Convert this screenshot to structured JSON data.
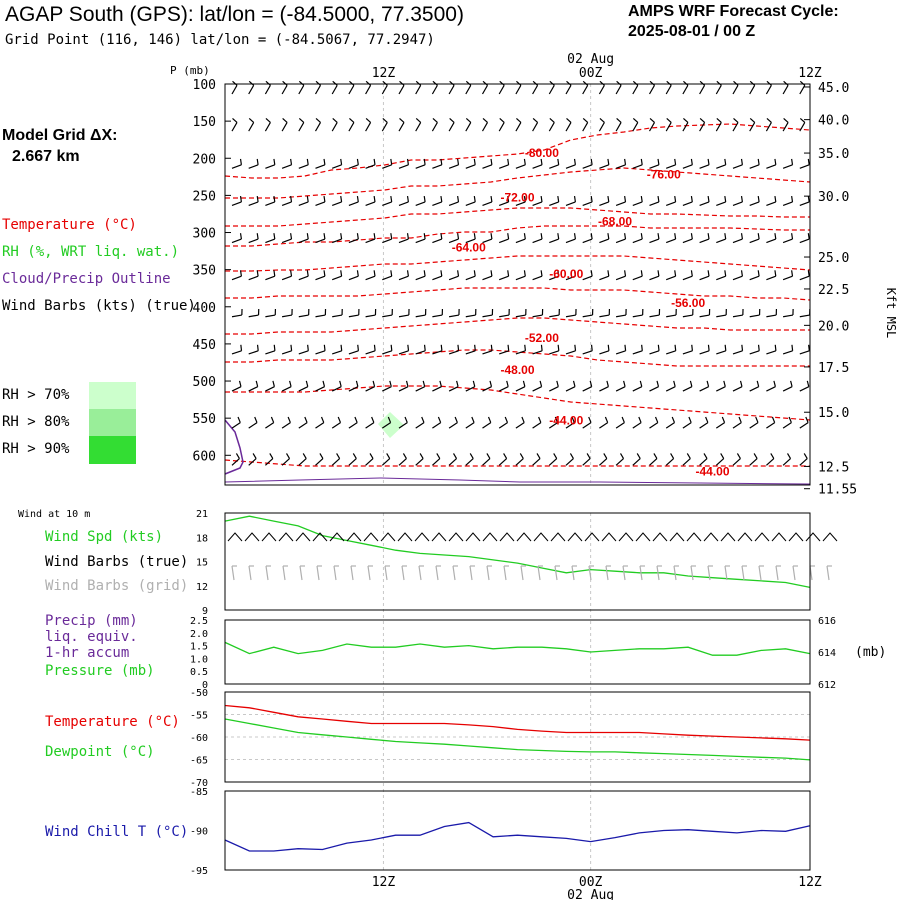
{
  "header": {
    "station_title": "AGAP South (GPS):  lat/lon = (-84.5000, 77.3500)",
    "grid_point": "Grid Point (116, 146) lat/lon = (-84.5067, 77.2947)",
    "cycle_label": "AMPS WRF Forecast Cycle:",
    "cycle_value": "2025-08-01 / 00  Z",
    "model_grid_label": "Model Grid ΔX:",
    "model_grid_value": "2.667 km"
  },
  "legend": {
    "temperature": "Temperature (°C)",
    "rh": "RH (%, WRT liq. wat.)",
    "cloud": "Cloud/Precip Outline",
    "wind_barbs": "Wind Barbs (kts) (true)",
    "rh70": "RH > 70%",
    "rh80": "RH > 80%",
    "rh90": "RH > 90%",
    "wind10m": "Wind at 10 m",
    "wind_spd": "Wind Spd (kts)",
    "wind_barbs_true": "Wind Barbs (true)",
    "wind_barbs_grid": "Wind Barbs (grid)",
    "precip_1": "Precip (mm)",
    "precip_2": "liq. equiv.",
    "precip_3": "1-hr accum",
    "pressure": "Pressure (mb)",
    "temp2": "Temperature (°C)",
    "dewpoint": "Dewpoint (°C)",
    "windchill": "Wind Chill T (°C)"
  },
  "colors": {
    "temperature": "#e60000",
    "green": "#22cc22",
    "purple": "#6a2a99",
    "blue": "#1a1aaa",
    "grid_barb": "#b0b0b0",
    "rh70": "#ccffcc",
    "rh80": "#99ee99",
    "rh90": "#33dd33"
  },
  "chart_data": [
    {
      "type": "line",
      "panel": "upper-air",
      "ylabel": "P (mb)",
      "right_label": "Kft MSL",
      "y_ticks": [
        "100",
        "150",
        "200",
        "250",
        "300",
        "350",
        "400",
        "450",
        "500",
        "550",
        "600"
      ],
      "right_ticks": [
        "45.0",
        "40.0",
        "35.0",
        "30.0",
        "25.0",
        "22.5",
        "20.0",
        "17.5",
        "15.0",
        "12.5",
        "11.55"
      ],
      "right_tick_pressures": [
        104,
        148,
        193,
        251,
        333,
        376,
        425,
        481,
        542,
        615,
        645
      ],
      "time_ticks": [
        "12Z",
        "00Z",
        "12Z"
      ],
      "date_label": "02 Aug",
      "temperature_labels": [
        {
          "text": "-80.00",
          "hour": 13,
          "p": 193
        },
        {
          "text": "-76.00",
          "hour": 18,
          "p": 222
        },
        {
          "text": "-72.00",
          "hour": 12,
          "p": 253
        },
        {
          "text": "-68.00",
          "hour": 16,
          "p": 285
        },
        {
          "text": "-64.00",
          "hour": 10,
          "p": 320
        },
        {
          "text": "-60.00",
          "hour": 14,
          "p": 356
        },
        {
          "text": "-56.00",
          "hour": 19,
          "p": 395
        },
        {
          "text": "-52.00",
          "hour": 13,
          "p": 442
        },
        {
          "text": "-48.00",
          "hour": 12,
          "p": 485
        },
        {
          "text": "-44.00",
          "hour": 14,
          "p": 553
        },
        {
          "text": "-44.00",
          "hour": 20,
          "p": 622
        }
      ]
    },
    {
      "type": "line",
      "panel": "wind",
      "y_ticks": [
        "21",
        "18",
        "15",
        "12",
        "9"
      ],
      "ylim": [
        9,
        21
      ],
      "series": [
        {
          "name": "Wind Spd (kts)",
          "x": [
            0,
            1,
            2,
            3,
            4,
            5,
            6,
            7,
            8,
            9,
            10,
            11,
            12,
            13,
            14,
            15,
            16,
            17,
            18,
            19,
            20,
            21,
            22,
            23,
            24
          ],
          "values": [
            20,
            20.6,
            20,
            19.4,
            18.2,
            17.6,
            17,
            16.4,
            16,
            15.8,
            15.6,
            15.2,
            14.8,
            14.2,
            13.6,
            14,
            13.8,
            13.6,
            13.6,
            13.2,
            13,
            12.8,
            12.6,
            12.4,
            11.8
          ]
        }
      ]
    },
    {
      "type": "line",
      "panel": "precip-pressure",
      "y_ticks": [
        "2.5",
        "2.0",
        "1.5",
        "1.0",
        "0.5",
        "0"
      ],
      "right_ticks": [
        "616",
        "614",
        "612"
      ],
      "right_label": "(mb)",
      "ylim": [
        0,
        2.5
      ],
      "series": [
        {
          "name": "Pressure (mb)",
          "x": [
            0,
            1,
            2,
            3,
            4,
            5,
            6,
            7,
            8,
            9,
            10,
            11,
            12,
            13,
            14,
            15,
            16,
            17,
            18,
            19,
            20,
            21,
            22,
            23,
            24
          ],
          "values": [
            614.6,
            613.9,
            614.3,
            613.9,
            614.1,
            614.5,
            614.3,
            614.3,
            614.5,
            614.3,
            614.4,
            614.2,
            614.3,
            614.3,
            614.2,
            614.0,
            614.1,
            614.2,
            614.2,
            614.3,
            613.8,
            613.8,
            614.1,
            614.2,
            613.9
          ]
        }
      ]
    },
    {
      "type": "line",
      "panel": "temperature",
      "y_ticks": [
        "-50",
        "-55",
        "-60",
        "-65",
        "-70"
      ],
      "ylim": [
        -70,
        -50
      ],
      "series": [
        {
          "name": "Temperature (°C)",
          "x": [
            0,
            1,
            2,
            3,
            4,
            5,
            6,
            7,
            8,
            9,
            10,
            11,
            12,
            13,
            14,
            15,
            16,
            17,
            18,
            19,
            20,
            21,
            22,
            23,
            24
          ],
          "values": [
            -53,
            -53.5,
            -54.5,
            -55.5,
            -56,
            -56.5,
            -57,
            -57,
            -57,
            -57,
            -57.3,
            -57.7,
            -58.3,
            -58.7,
            -59,
            -59,
            -59,
            -59,
            -59.3,
            -59.6,
            -59.8,
            -60,
            -60.2,
            -60.4,
            -60.7
          ]
        },
        {
          "name": "Dewpoint (°C)",
          "x": [
            0,
            1,
            2,
            3,
            4,
            5,
            6,
            7,
            8,
            9,
            10,
            11,
            12,
            13,
            14,
            15,
            16,
            17,
            18,
            19,
            20,
            21,
            22,
            23,
            24
          ],
          "values": [
            -56,
            -57,
            -58,
            -59,
            -59.5,
            -60,
            -60.5,
            -61,
            -61.3,
            -61.6,
            -62,
            -62.4,
            -62.8,
            -63,
            -63.2,
            -63.3,
            -63.3,
            -63.5,
            -63.7,
            -63.9,
            -64.1,
            -64.3,
            -64.5,
            -64.7,
            -65.1
          ]
        }
      ]
    },
    {
      "type": "line",
      "panel": "wind-chill",
      "y_ticks": [
        "-85",
        "-90",
        "-95"
      ],
      "ylim": [
        -95,
        -85
      ],
      "series": [
        {
          "name": "Wind Chill T (°C)",
          "x": [
            0,
            1,
            2,
            3,
            4,
            5,
            6,
            7,
            8,
            9,
            10,
            11,
            12,
            13,
            14,
            15,
            16,
            17,
            18,
            19,
            20,
            21,
            22,
            23,
            24
          ],
          "values": [
            -91.2,
            -92.6,
            -92.6,
            -92.3,
            -92.4,
            -91.6,
            -91.2,
            -90.6,
            -90.6,
            -89.5,
            -89.0,
            -90.8,
            -90.6,
            -90.8,
            -91.0,
            -91.4,
            -90.9,
            -90.3,
            -90.0,
            -89.9,
            -90.1,
            -90.3,
            -90.0,
            -90.1,
            -89.4
          ]
        }
      ]
    }
  ]
}
